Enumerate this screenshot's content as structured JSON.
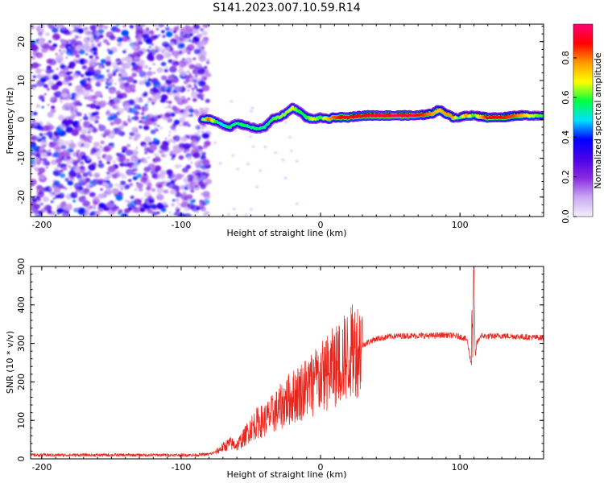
{
  "title": "S141.2023.007.10.59.R14",
  "chart_data": [
    {
      "type": "heatmap",
      "title": "S141.2023.007.10.59.R14",
      "xlabel": "Height of straight line (km)",
      "ylabel": "Frequency (Hz)",
      "xlim": [
        -208,
        160
      ],
      "ylim": [
        -25,
        24.5
      ],
      "x_ticks": [
        "-200",
        "-100",
        "0",
        "100"
      ],
      "x_tick_values": [
        -200,
        -100,
        0,
        100
      ],
      "y_ticks": [
        "20",
        "10",
        "0",
        "-10",
        "-20"
      ],
      "y_tick_values": [
        20,
        10,
        0,
        -10,
        -20
      ],
      "grid": false,
      "colorbar": {
        "label": "Normalized spectral amplitude",
        "range": [
          0,
          0.97
        ],
        "ticks": [
          "0.0",
          "0.2",
          "0.4",
          "0.6",
          "0.8"
        ],
        "tick_values": [
          0,
          0.2,
          0.4,
          0.6,
          0.8
        ],
        "colormap": "rainbow",
        "colors": [
          "#f4f0fc",
          "#c9a8f2",
          "#8a2be2",
          "#4a00e8",
          "#0000ff",
          "#00e0ff",
          "#00ff40",
          "#ffff00",
          "#ff9900",
          "#ff0000",
          "#ff0078"
        ]
      },
      "noise_region": {
        "x_range": [
          -208,
          -85
        ],
        "freq_range": [
          -25,
          24.5
        ],
        "level": 0.1
      },
      "signal_ridge": {
        "x": [
          -85,
          -80,
          -75,
          -70,
          -65,
          -60,
          -55,
          -50,
          -45,
          -40,
          -35,
          -30,
          -25,
          -20,
          -15,
          -10,
          -5,
          0,
          5,
          10,
          15,
          20,
          30,
          40,
          50,
          60,
          70,
          80,
          85,
          90,
          95,
          100,
          105,
          110,
          120,
          130,
          140,
          150,
          160
        ],
        "freq": [
          0,
          0,
          -0.5,
          -1.5,
          -2,
          -1,
          -1.5,
          -2,
          -2.5,
          -2,
          0,
          0.5,
          1.5,
          3,
          2,
          0.5,
          0,
          0.5,
          0,
          0.5,
          0.5,
          0.5,
          1,
          1,
          1,
          1,
          1,
          1.5,
          2.5,
          1.5,
          0.5,
          0.5,
          1,
          1,
          0.5,
          0.5,
          1,
          1,
          1
        ],
        "amplitude": [
          0.6,
          0.85,
          0.6,
          0.5,
          0.6,
          0.55,
          0.6,
          0.55,
          0.6,
          0.55,
          0.6,
          0.65,
          0.65,
          0.7,
          0.6,
          0.6,
          0.7,
          0.6,
          0.75,
          0.85,
          0.9,
          0.9,
          0.92,
          0.95,
          0.95,
          0.95,
          0.92,
          0.8,
          0.75,
          0.8,
          0.8,
          0.6,
          0.8,
          0.6,
          0.92,
          0.9,
          0.85,
          0.7,
          0.6
        ]
      }
    },
    {
      "type": "line",
      "xlabel": "Height of straight line (km)",
      "ylabel": "SNR (10 * v/v)",
      "xlim": [
        -208,
        160
      ],
      "ylim": [
        0,
        500
      ],
      "x_ticks": [
        "-200",
        "-100",
        "0",
        "100"
      ],
      "x_tick_values": [
        -200,
        -100,
        0,
        100
      ],
      "y_ticks": [
        "0",
        "100",
        "200",
        "300",
        "400",
        "500"
      ],
      "y_tick_values": [
        0,
        100,
        200,
        300,
        400,
        500
      ],
      "grid": false,
      "series": [
        {
          "color": "#e8251c",
          "x": [
            -208,
            -190,
            -170,
            -150,
            -130,
            -110,
            -90,
            -80,
            -75,
            -70,
            -65,
            -60,
            -55,
            -50,
            -45,
            -40,
            -35,
            -30,
            -25,
            -20,
            -15,
            -10,
            -5,
            0,
            5,
            10,
            15,
            20,
            25,
            30,
            35,
            40,
            50,
            60,
            70,
            80,
            90,
            100,
            105,
            108,
            109,
            110,
            111,
            112,
            115,
            120,
            130,
            140,
            150,
            160
          ],
          "y": [
            10,
            10,
            10,
            10,
            10,
            10,
            10,
            12,
            18,
            30,
            40,
            35,
            55,
            80,
            95,
            100,
            115,
            130,
            150,
            160,
            175,
            185,
            200,
            210,
            225,
            240,
            255,
            270,
            285,
            295,
            305,
            312,
            318,
            320,
            320,
            320,
            322,
            318,
            310,
            250,
            220,
            470,
            260,
            300,
            320,
            318,
            320,
            318,
            316,
            315
          ]
        }
      ]
    }
  ]
}
